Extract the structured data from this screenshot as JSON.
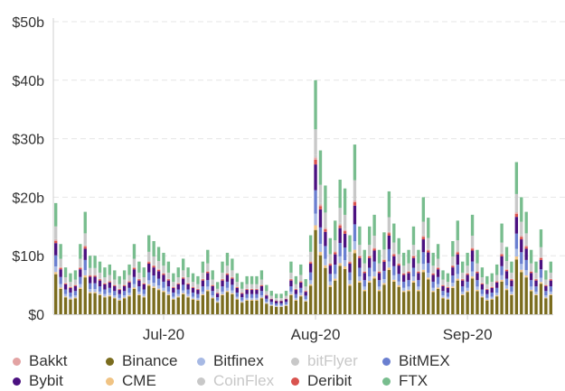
{
  "chart_data": {
    "type": "bar",
    "stacked": true,
    "y_tick_labels": [
      "$0",
      "$10b",
      "$20b",
      "$30b",
      "$40b",
      "$50b"
    ],
    "ylim": [
      0,
      50
    ],
    "x_tick_labels": [
      "Jul-20",
      "Aug-20",
      "Sep-20"
    ],
    "x_tick_day_index": [
      22,
      53,
      84
    ],
    "grid": true,
    "legend_position": "bottom",
    "colors": {
      "Bakkt": "#e3a3a3",
      "Binance": "#7a6c1e",
      "Bitfinex": "#a7b9e4",
      "bitFlyer": "#c8c8c8",
      "BitMEX": "#6a7fd0",
      "Bybit": "#4b1180",
      "CME": "#f0c383",
      "CoinFlex": "#c8c8c8",
      "Deribit": "#d9534f",
      "FTX": "#78bd8e"
    },
    "legend": [
      {
        "name": "Bakkt",
        "row": 0,
        "col": 0,
        "faded": false
      },
      {
        "name": "Binance",
        "row": 0,
        "col": 1,
        "faded": false
      },
      {
        "name": "Bitfinex",
        "row": 0,
        "col": 2,
        "faded": false
      },
      {
        "name": "bitFlyer",
        "row": 0,
        "col": 3,
        "faded": true
      },
      {
        "name": "BitMEX",
        "row": 0,
        "col": 4,
        "faded": false
      },
      {
        "name": "Bybit",
        "row": 1,
        "col": 0,
        "faded": false
      },
      {
        "name": "CME",
        "row": 1,
        "col": 1,
        "faded": false
      },
      {
        "name": "CoinFlex",
        "row": 1,
        "col": 2,
        "faded": true
      },
      {
        "name": "Deribit",
        "row": 1,
        "col": 3,
        "faded": false
      },
      {
        "name": "FTX",
        "row": 1,
        "col": 4,
        "faded": false
      }
    ],
    "stack_order": [
      "Binance",
      "CME",
      "Bitfinex",
      "BitMEX",
      "Bybit",
      "Deribit",
      "Bakkt",
      "CoinFlex",
      "bitFlyer",
      "FTX"
    ],
    "share": {
      "Binance": 0.36,
      "CME": 0.02,
      "Bitfinex": 0.05,
      "BitMEX": 0.1,
      "Bybit": 0.11,
      "Deribit": 0.02,
      "Bakkt": 0.01,
      "CoinFlex": 0.01,
      "bitFlyer": 0.11,
      "FTX": 0.21
    },
    "daily_totals": [
      19,
      12,
      8,
      7,
      7.5,
      12,
      17.5,
      10,
      10,
      9,
      8,
      8.5,
      7.5,
      6.5,
      7.5,
      8.5,
      12,
      9,
      8,
      13.5,
      12.5,
      11.5,
      10.5,
      9,
      7,
      8,
      9.5,
      8,
      7,
      6.5,
      9,
      11,
      7.5,
      5.5,
      9,
      10.5,
      9.5,
      7,
      5.5,
      6.5,
      6.5,
      6.5,
      7.5,
      5,
      4,
      3.5,
      3.5,
      4,
      9,
      6.5,
      8.5,
      6,
      13.5,
      40,
      28,
      22,
      13,
      16,
      23,
      21.5,
      13.5,
      29,
      15,
      11,
      15,
      17,
      11,
      14,
      21,
      15.5,
      13,
      10.5,
      11,
      15,
      11,
      20,
      16.5,
      10.5,
      12,
      7.5,
      7,
      12.5,
      16,
      9,
      10.5,
      17,
      11,
      8,
      6.5,
      7,
      8.5,
      15.5,
      11.5,
      9,
      26,
      20,
      17.5,
      11,
      9,
      14.5,
      7.5,
      9
    ]
  }
}
